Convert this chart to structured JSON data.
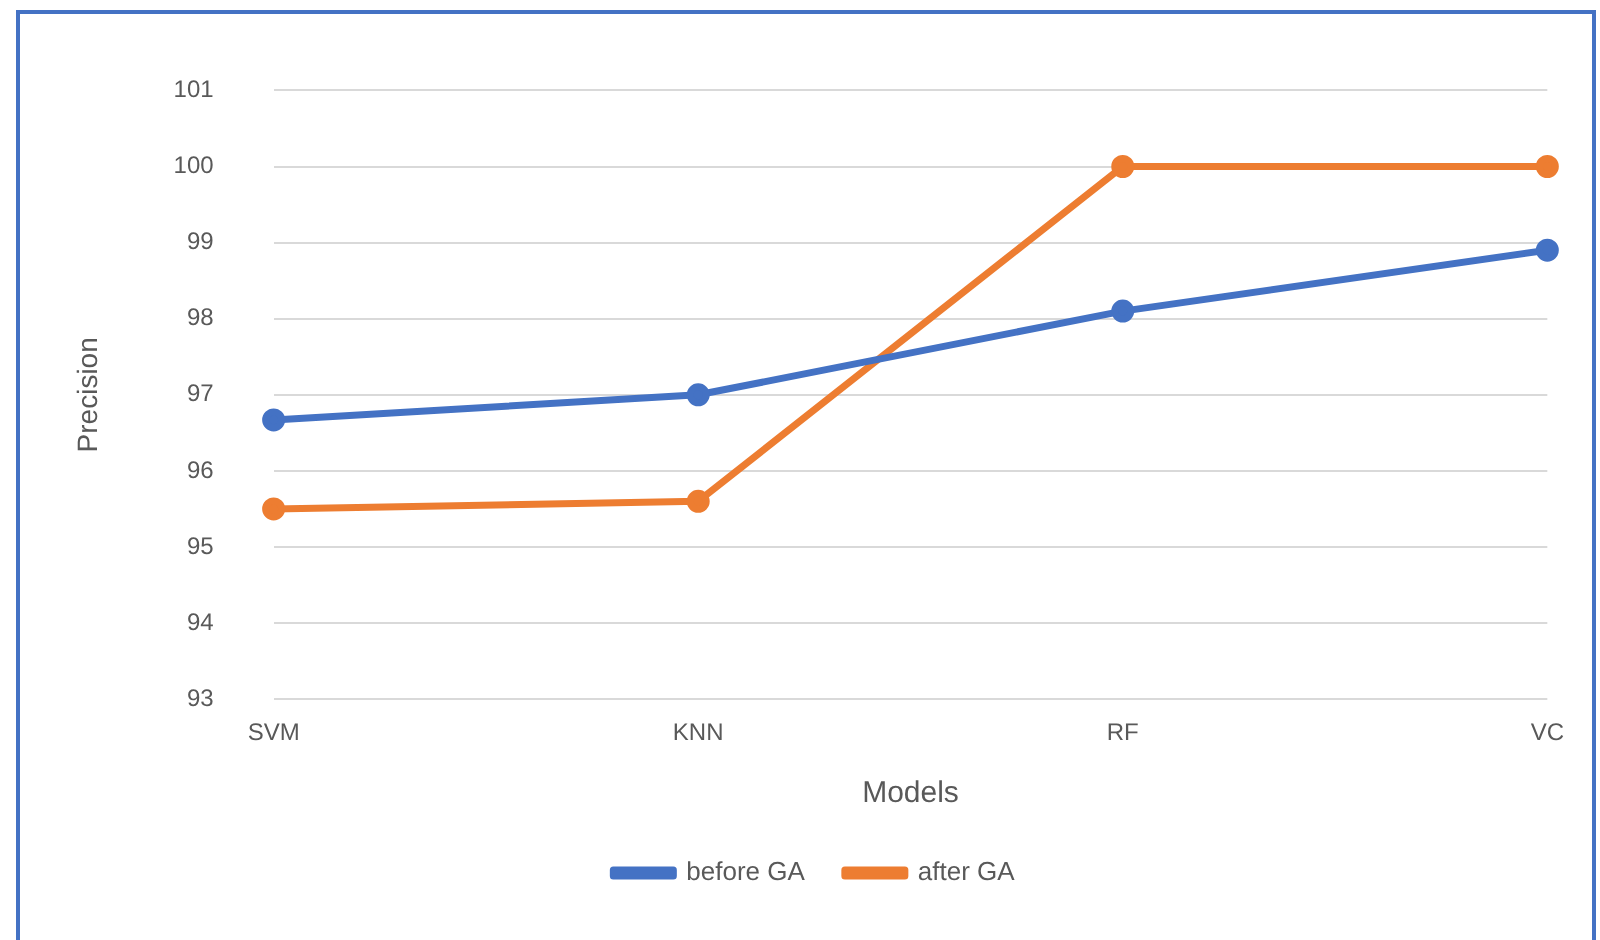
{
  "chart_data": {
    "type": "line",
    "xlabel": "Models",
    "ylabel": "Precision",
    "categories": [
      "SVM",
      "KNN",
      "RF",
      "VC"
    ],
    "series": [
      {
        "name": "before GA",
        "color": "#4472c4",
        "values": [
          96.67,
          97.0,
          98.1,
          98.9
        ]
      },
      {
        "name": "after GA",
        "color": "#ed7d31",
        "values": [
          95.5,
          95.6,
          100,
          100
        ]
      }
    ],
    "ylim": [
      93,
      101
    ],
    "yticks": [
      93,
      94,
      95,
      96,
      97,
      98,
      99,
      100,
      101
    ],
    "grid": "y",
    "legend": "bottom",
    "marker": "circle",
    "line_style": "solid"
  }
}
